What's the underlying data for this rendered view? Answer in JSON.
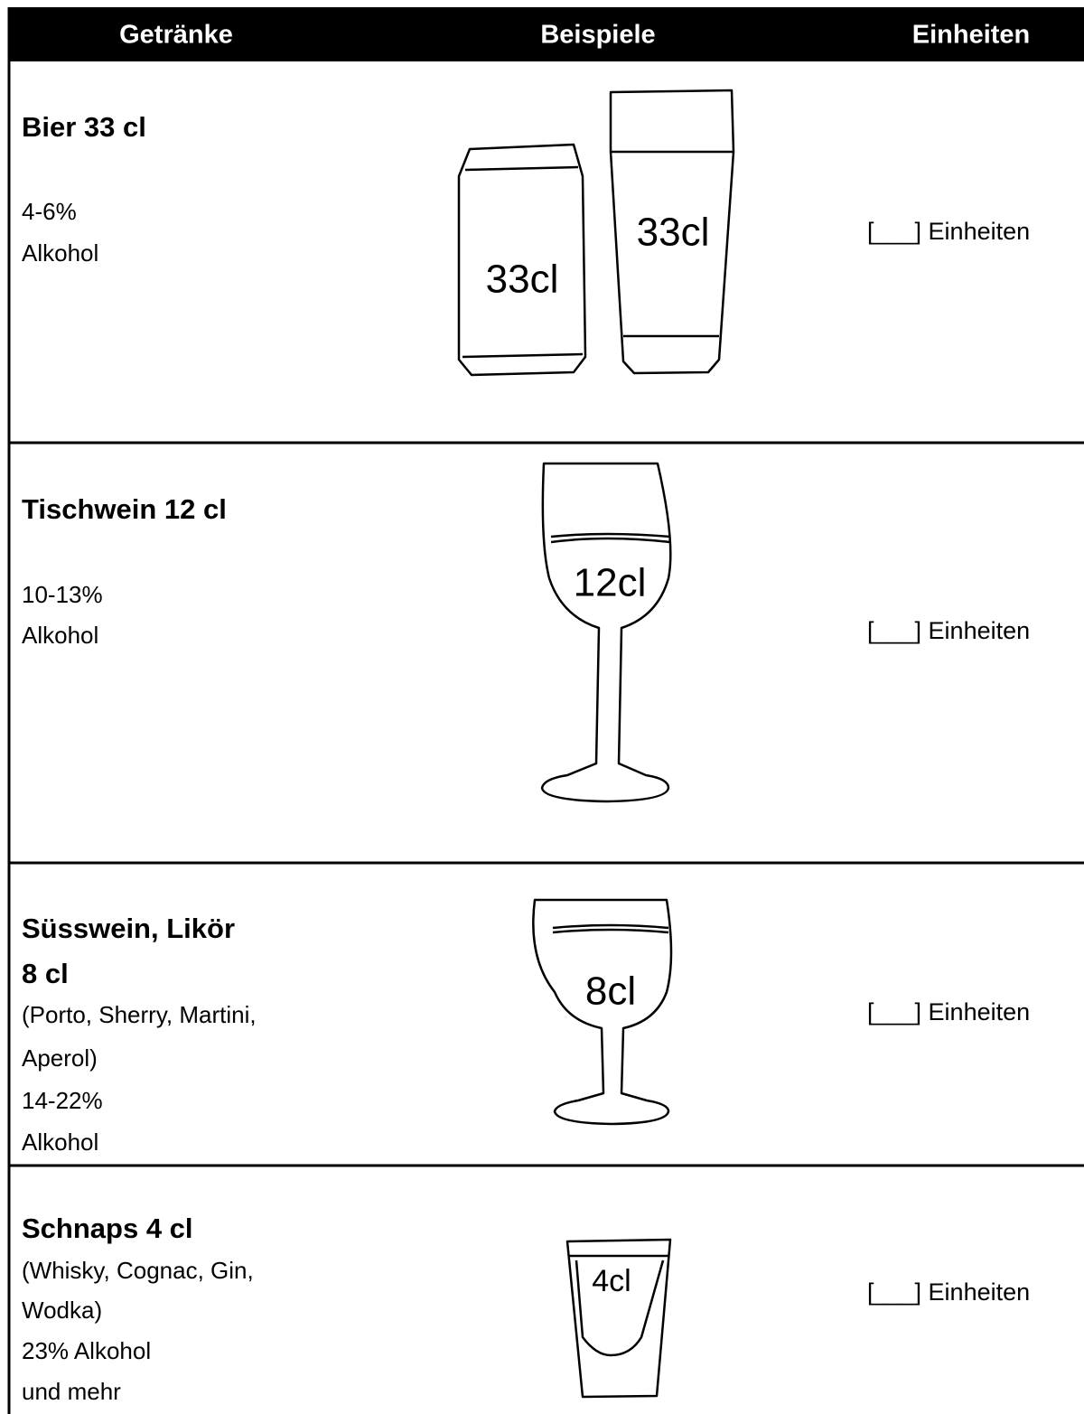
{
  "header": {
    "columns": [
      "Getränke",
      "Beispiele",
      "Einheiten"
    ]
  },
  "rows": [
    {
      "title_lines": [
        "Bier 33 cl"
      ],
      "details": [
        "4-6%",
        "Alkohol"
      ],
      "example_labels": [
        "33cl",
        "33cl"
      ],
      "units": "[___] Einheiten"
    },
    {
      "title_lines": [
        "Tischwein 12 cl"
      ],
      "details": [
        "10-13%",
        "Alkohol"
      ],
      "example_labels": [
        "12cl"
      ],
      "units": "[___] Einheiten"
    },
    {
      "title_lines": [
        "Süsswein, Likör",
        "8 cl"
      ],
      "details": [
        "(Porto, Sherry, Martini,",
        "Aperol)",
        "14-22%",
        "Alkohol"
      ],
      "example_labels": [
        "8cl"
      ],
      "units": "[___] Einheiten"
    },
    {
      "title_lines": [
        "Schnaps 4 cl"
      ],
      "details": [
        "(Whisky, Cognac, Gin,",
        "Wodka)",
        "23% Alkohol",
        "und mehr"
      ],
      "example_labels": [
        "4cl"
      ],
      "units": "[___] Einheiten"
    }
  ]
}
